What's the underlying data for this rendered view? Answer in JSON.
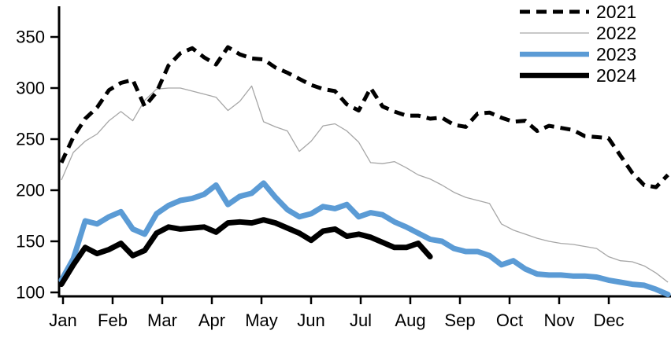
{
  "chart_data": {
    "type": "line",
    "title": "",
    "xlabel": "",
    "ylabel": "",
    "x_axis": {
      "tick_labels": [
        "Jan",
        "Feb",
        "Mar",
        "Apr",
        "May",
        "Jun",
        "Jul",
        "Aug",
        "Sep",
        "Oct",
        "Nov",
        "Dec"
      ],
      "resolution": "weekly"
    },
    "y_axis": {
      "ticks": [
        350,
        300,
        250,
        200,
        150,
        100
      ],
      "ylim": [
        100,
        350
      ],
      "grid": false
    },
    "legend": {
      "position": "top-right",
      "entries": [
        "2021",
        "2022",
        "2023",
        "2024"
      ]
    },
    "series": [
      {
        "name": "2022",
        "color": "#a6a6a6",
        "style": "solid",
        "width": 1.3,
        "values": [
          210,
          237,
          248,
          255,
          268,
          277,
          268,
          288,
          299,
          300,
          300,
          297,
          294,
          291,
          278,
          287,
          302,
          267,
          262,
          258,
          238,
          248,
          263,
          265,
          258,
          247,
          227,
          226,
          228,
          222,
          215,
          211,
          205,
          198,
          193,
          190,
          187,
          167,
          161,
          157,
          153,
          150,
          148,
          147,
          145,
          143,
          135,
          131,
          130,
          126,
          119,
          110
        ]
      },
      {
        "name": "2021",
        "color": "#000000",
        "style": "dashed",
        "width": 5,
        "values": [
          227,
          252,
          270,
          281,
          298,
          305,
          308,
          282,
          296,
          322,
          334,
          339,
          330,
          323,
          340,
          333,
          329,
          328,
          320,
          315,
          309,
          303,
          299,
          297,
          284,
          278,
          300,
          282,
          277,
          273,
          273,
          270,
          271,
          264,
          262,
          275,
          276,
          271,
          267,
          268,
          258,
          263,
          261,
          259,
          253,
          252,
          251,
          234,
          217,
          205,
          203,
          215
        ]
      },
      {
        "name": "2023",
        "color": "#5b9bd5",
        "style": "solid",
        "width": 7,
        "values": [
          112,
          133,
          170,
          167,
          174,
          179,
          162,
          157,
          177,
          185,
          190,
          192,
          196,
          205,
          186,
          194,
          197,
          207,
          193,
          181,
          174,
          177,
          184,
          182,
          186,
          174,
          178,
          176,
          169,
          164,
          158,
          152,
          150,
          143,
          140,
          140,
          136,
          127,
          131,
          123,
          118,
          117,
          117,
          116,
          116,
          115,
          112,
          110,
          108,
          107,
          103,
          98
        ]
      },
      {
        "name": "2024",
        "color": "#000000",
        "style": "solid",
        "width": 7,
        "values": [
          108,
          127,
          144,
          138,
          142,
          148,
          136,
          141,
          158,
          164,
          162,
          163,
          164,
          159,
          168,
          169,
          168,
          171,
          168,
          163,
          158,
          151,
          160,
          162,
          155,
          157,
          154,
          149,
          144,
          144,
          148,
          135
        ]
      }
    ]
  },
  "colors": {
    "background": "#ffffff",
    "axis": "#000000",
    "text": "#000000",
    "series_2021": "#000000",
    "series_2022": "#a6a6a6",
    "series_2023": "#5b9bd5",
    "series_2024": "#000000"
  }
}
